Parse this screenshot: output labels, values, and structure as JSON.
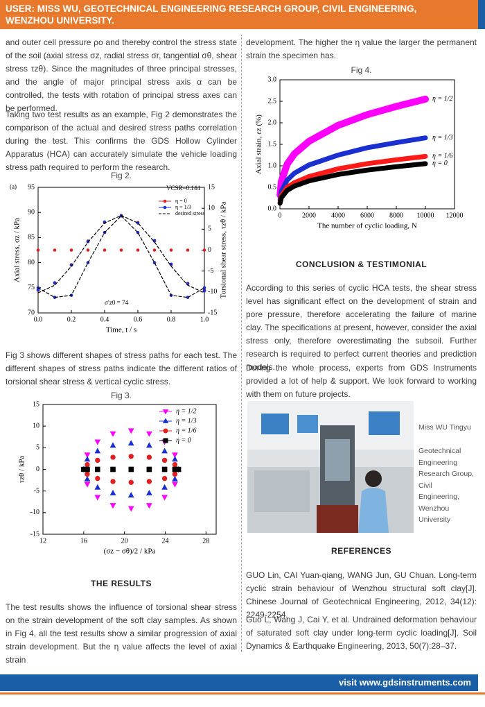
{
  "header": {
    "title": "USER:  MISS WU, GEOTECHNICAL ENGINEERING RESEARCH GROUP, CIVIL ENGINEERING, WENZHOU UNIVERSITY."
  },
  "left_column": [
    "and outer cell pressure ρo and thereby control the stress state of the soil (axial stress σz, radial stress σr, tangential σθ, shear stress τzθ). Since the magnitudes of three principal stresses, and the angle of major principal stress axis α can be controlled, the tests with rotation of principal stress axes can be performed.",
    "Taking two test results as an example, Fig 2 demonstrates the comparison of the actual and desired stress paths correlation during the test. This confirms the GDS Hollow Cylinder Apparatus (HCA) can accurately simulate the vehicle loading stress path required to perform the research.",
    "Fig 3 shows different shapes of stress paths for each test. The different shapes of stress paths indicate the different ratios of torsional shear stress & vertical cyclic stress.",
    "The test results shows the influence of torsional shear stress on the strain development of the soft clay samples. As shown in Fig 4, all the test results show a similar progression of axial strain development. But the η value affects the level of axial strain"
  ],
  "right_column": [
    "development. The higher the η value the larger the permanent strain the specimen has.",
    "According to this series of cyclic HCA tests, the shear stress level has significant effect on the development of strain and pore pressure, therefore accelerating the failure of marine clay. The specifications at present, however, consider the axial stress only, therefore overestimating the subsoil. Further research is required to perfect current theories and prediction models.",
    "During the whole process, experts from GDS Instruments provided a lot of help & support. We look forward to working with them on future projects."
  ],
  "sections": {
    "results": "THE RESULTS",
    "conclusion": "CONCLUSION & TESTIMONIAL",
    "references": "REFERENCES"
  },
  "photo": {
    "name": "Miss WU Tingyu",
    "affiliation": "Geotechnical Engineering Research Group, Civil Engineering, Wenzhou University"
  },
  "references": [
    "GUO Lin, CAI Yuan-qiang, WANG Jun, GU Chuan. Long-term cyclic strain behaviour of Wenzhou structural soft clay[J]. Chinese Journal of Geotechnical Engineering, 2012, 34(12): 2249-2254.",
    "Guo L, Wang J, Cai Y, et al. Undrained deformation behaviour of saturated soft clay under long-term cyclic loading[J]. Soil Dynamics & Earthquake Engineering, 2013, 50(7):28–37."
  ],
  "footer": {
    "url": "visit www.gdsinstruments.com"
  },
  "chart_data": [
    {
      "type": "line",
      "title": "Fig 2.",
      "legend": "upper right",
      "annotations": [
        "(a)",
        "VCSR=0.144",
        "σ′z0 = 74"
      ],
      "xlabel": "Time, t / s",
      "ylabel": "Axial stress, σz / kPa",
      "y2label": "Torsional shear stress, τzθ / kPa",
      "x": [
        0,
        0.1,
        0.2,
        0.3,
        0.4,
        0.5,
        0.6,
        0.7,
        0.8,
        0.9,
        1
      ],
      "xlim": [
        0,
        1
      ],
      "xticks": [
        {
          "value": 0,
          "label": "0.0"
        },
        0.2,
        0.4,
        0.6,
        0.8,
        {
          "value": 1,
          "label": "1.0"
        }
      ],
      "ylim": [
        70,
        95
      ],
      "yticks": [
        70,
        75,
        80,
        85,
        90,
        95
      ],
      "y2lim": [
        -15,
        15
      ],
      "y2ticks": [
        -15,
        -10,
        -5,
        0,
        5,
        10,
        15
      ],
      "series": [
        {
          "name": "η = 0",
          "color": "#e02020",
          "marker": "circle",
          "values": [
            74.5,
            75.9,
            79.6,
            84.3,
            88.0,
            89.4,
            88.0,
            84.3,
            79.6,
            75.9,
            74.5
          ]
        },
        {
          "color": "#e02020",
          "marker": "circle",
          "axis": "y2",
          "values": [
            0,
            0,
            0,
            0,
            0,
            0,
            0,
            0,
            0,
            0,
            0
          ]
        },
        {
          "name": "η = 1/3",
          "color": "#1a2fd0",
          "marker": "circle",
          "values": [
            74.6,
            76.0,
            79.5,
            84.2,
            88.1,
            89.3,
            87.9,
            84.4,
            79.7,
            75.8,
            74.4
          ]
        },
        {
          "color": "#1a2fd0",
          "marker": "circle",
          "axis": "y2",
          "values": [
            -9,
            -11.3,
            -10.8,
            -3,
            4.2,
            8.2,
            4.2,
            -3,
            -10.8,
            -11.3,
            -9
          ]
        },
        {
          "name": "desired stress",
          "color": "#000000",
          "dashed": true,
          "values": [
            74,
            75.5,
            79.3,
            84.1,
            87.9,
            89.4,
            87.9,
            84.1,
            79.3,
            75.5,
            74
          ]
        },
        {
          "color": "#000000",
          "dashed": true,
          "axis": "y2",
          "values": [
            -9,
            -11.3,
            -10.8,
            -3,
            4.2,
            8.2,
            4.2,
            -3,
            -10.8,
            -11.3,
            -9
          ]
        }
      ]
    },
    {
      "type": "scatter",
      "title": "Fig 3.",
      "legend": "upper right",
      "xlabel": "(σz − σθ)/2 / kPa",
      "ylabel": "τzθ / kPa",
      "xlim": [
        12,
        29
      ],
      "xticks": [
        12,
        16,
        20,
        24,
        28
      ],
      "ylim": [
        -15,
        15
      ],
      "yticks": [
        -15,
        -10,
        -5,
        0,
        5,
        10,
        15
      ],
      "series": [
        {
          "name": "η = 1/2",
          "color": "#ff00ff",
          "marker": "triangle-down",
          "x": [
            25.3,
            24.95,
            23.94,
            22.43,
            20.65,
            18.87,
            17.36,
            16.35,
            16.0,
            16.35,
            17.36,
            18.87,
            20.65,
            22.43,
            23.94,
            24.95
          ],
          "values": [
            0,
            3.4,
            6.4,
            8.3,
            9,
            8.3,
            6.4,
            3.4,
            0,
            -3.4,
            -6.4,
            -8.3,
            -9,
            -8.3,
            -6.4,
            -3.4
          ]
        },
        {
          "name": "η = 1/3",
          "color": "#1a2fd0",
          "marker": "triangle-up",
          "x": [
            25.3,
            24.95,
            23.94,
            22.43,
            20.65,
            18.87,
            17.36,
            16.35,
            16.0,
            16.35,
            17.36,
            18.87,
            20.65,
            22.43,
            23.94,
            24.95
          ],
          "values": [
            0,
            2.3,
            4.2,
            5.5,
            6,
            5.5,
            4.2,
            2.3,
            0,
            -2.3,
            -4.2,
            -5.5,
            -6,
            -5.5,
            -4.2,
            -2.3
          ]
        },
        {
          "name": "η = 1/6",
          "color": "#e02020",
          "marker": "circle",
          "x": [
            25.3,
            24.95,
            23.94,
            22.43,
            20.65,
            18.87,
            17.36,
            16.35,
            16.0,
            16.35,
            17.36,
            18.87,
            20.65,
            22.43,
            23.94,
            24.95
          ],
          "values": [
            0,
            1.1,
            2.1,
            2.8,
            3,
            2.8,
            2.1,
            1.1,
            0,
            -1.1,
            -2.1,
            -2.8,
            -3,
            -2.8,
            -2.1,
            -1.1
          ]
        },
        {
          "name": "η = 0",
          "color": "#000000",
          "marker": "square",
          "x": [
            25.3,
            24.95,
            23.94,
            22.43,
            20.65,
            18.87,
            17.36,
            16.35,
            16.0,
            16.35,
            17.36,
            18.87,
            20.65,
            22.43,
            23.94,
            24.95
          ],
          "values": [
            0,
            0,
            0,
            0,
            0,
            0,
            0,
            0,
            0,
            0,
            0,
            0,
            0,
            0,
            0,
            0
          ]
        }
      ]
    },
    {
      "type": "line",
      "title": "Fig 4.",
      "legend": "line end",
      "xlabel": "The number of cyclic loading, N",
      "ylabel": "Axial strain, εz (%)",
      "x": [
        10,
        100,
        500,
        1000,
        2000,
        4000,
        6000,
        8000,
        10000
      ],
      "xlim": [
        0,
        12000
      ],
      "xticks": [
        0,
        2000,
        4000,
        6000,
        8000,
        10000,
        12000
      ],
      "ylim": [
        0,
        3
      ],
      "yticks": [
        {
          "value": 0,
          "label": "0.0"
        },
        0.5,
        {
          "value": 1,
          "label": "1.0"
        },
        1.5,
        {
          "value": 2,
          "label": "2.0"
        },
        2.5,
        {
          "value": 3,
          "label": "3.0"
        }
      ],
      "series": [
        {
          "name": "η = 1/2",
          "color": "#ff00ff",
          "values": [
            0.32,
            0.64,
            1.04,
            1.28,
            1.57,
            1.94,
            2.19,
            2.38,
            2.55
          ]
        },
        {
          "name": "η = 1/3",
          "color": "#1a2fd0",
          "values": [
            0.21,
            0.41,
            0.67,
            0.83,
            1.02,
            1.25,
            1.42,
            1.54,
            1.65
          ]
        },
        {
          "name": "η = 1/6",
          "color": "#ff1a1a",
          "values": [
            0.15,
            0.31,
            0.5,
            0.61,
            0.75,
            0.93,
            1.05,
            1.14,
            1.22
          ]
        },
        {
          "name": "η = 0",
          "color": "#000000",
          "values": [
            0.13,
            0.26,
            0.43,
            0.53,
            0.65,
            0.8,
            0.9,
            0.98,
            1.05
          ]
        }
      ]
    }
  ]
}
